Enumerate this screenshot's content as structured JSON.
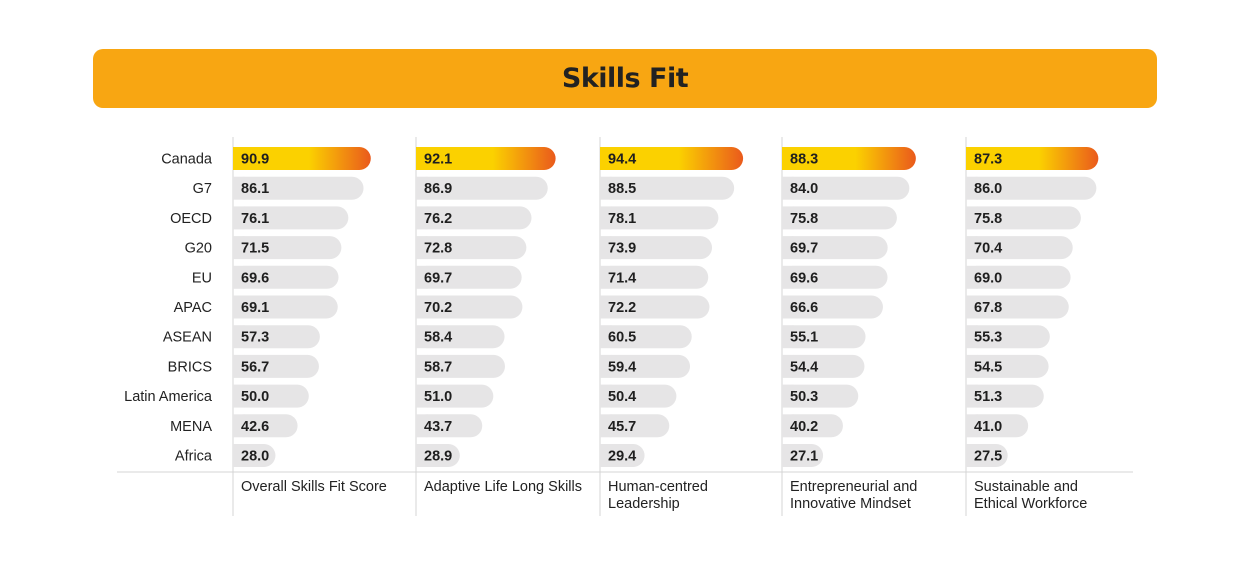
{
  "chart_data": {
    "type": "bar",
    "title": "Skills Fit",
    "orientation": "horizontal",
    "categories": [
      "Canada",
      "G7",
      "OECD",
      "G20",
      "EU",
      "APAC",
      "ASEAN",
      "BRICS",
      "Latin America",
      "MENA",
      "Africa"
    ],
    "highlight_category": "Canada",
    "series": [
      {
        "name": [
          "Overall Skills Fit Score"
        ],
        "values": [
          90.9,
          86.1,
          76.1,
          71.5,
          69.6,
          69.1,
          57.3,
          56.7,
          50.0,
          42.6,
          28.0
        ]
      },
      {
        "name": [
          "Adaptive Life Long Skills"
        ],
        "values": [
          92.1,
          86.9,
          76.2,
          72.8,
          69.7,
          70.2,
          58.4,
          58.7,
          51.0,
          43.7,
          28.9
        ]
      },
      {
        "name": [
          "Human-centred",
          "Leadership"
        ],
        "values": [
          94.4,
          88.5,
          78.1,
          73.9,
          71.4,
          72.2,
          60.5,
          59.4,
          50.4,
          45.7,
          29.4
        ]
      },
      {
        "name": [
          "Entrepreneurial and",
          "Innovative Mindset"
        ],
        "values": [
          88.3,
          84.0,
          75.8,
          69.7,
          69.6,
          66.6,
          55.1,
          54.4,
          50.3,
          40.2,
          27.1
        ]
      },
      {
        "name": [
          "Sustainable and",
          "Ethical Workforce"
        ],
        "values": [
          87.3,
          86.0,
          75.8,
          70.4,
          69.0,
          67.8,
          55.3,
          54.5,
          51.3,
          41.0,
          27.5
        ]
      }
    ],
    "value_labels": [
      [
        "90.9",
        "86.1",
        "76.1",
        "71.5",
        "69.6",
        "69.1",
        "57.3",
        "56.7",
        "50.0",
        "42.6",
        "28.0"
      ],
      [
        "92.1",
        "86.9",
        "76.2",
        "72.8",
        "69.7",
        "70.2",
        "58.4",
        "58.7",
        "51.0",
        "43.7",
        "28.9"
      ],
      [
        "94.4",
        "88.5",
        "78.1",
        "73.9",
        "71.4",
        "72.2",
        "60.5",
        "59.4",
        "50.4",
        "45.7",
        "29.4"
      ],
      [
        "88.3",
        "84.0",
        "75.8",
        "69.7",
        "69.6",
        "66.6",
        "55.1",
        "54.4",
        "50.3",
        "40.2",
        "27.1"
      ],
      [
        "87.3",
        "86.0",
        "75.8",
        "70.4",
        "69.0",
        "67.8",
        "55.3",
        "54.5",
        "51.3",
        "41.0",
        "27.5"
      ]
    ],
    "xlim": [
      0,
      100
    ],
    "grid": false,
    "legend": "none"
  },
  "colors": {
    "banner": "#f8a612",
    "bar_default": "#e6e5e6",
    "highlight_start": "#fbd100",
    "highlight_end": "#ea5a1c",
    "divider": "#d4d4d4"
  }
}
